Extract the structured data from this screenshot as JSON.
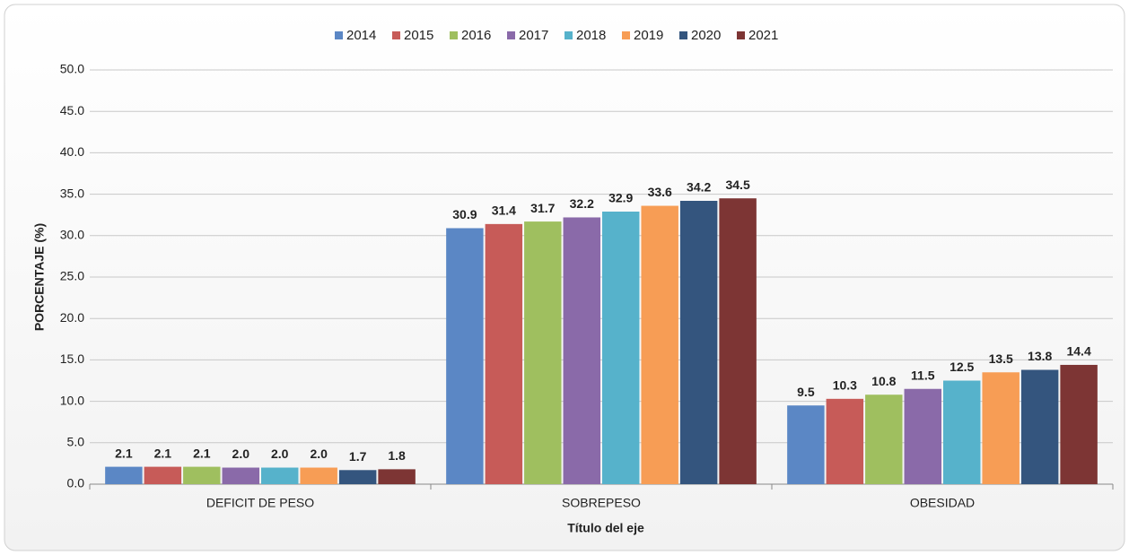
{
  "chart_data": {
    "type": "bar",
    "x_label": "Título del eje",
    "y_label": "PORCENTAJE (%)",
    "categories": [
      "DEFICIT DE PESO",
      "SOBREPESO",
      "OBESIDAD"
    ],
    "series": [
      {
        "name": "2014",
        "color": "#5b87c5",
        "values": [
          2.1,
          30.9,
          9.5
        ],
        "value_labels": [
          "2.1",
          "30.9",
          "9.5"
        ]
      },
      {
        "name": "2015",
        "color": "#c75b58",
        "values": [
          2.1,
          31.4,
          10.3
        ],
        "value_labels": [
          "2.1",
          "31.4",
          "10.3"
        ]
      },
      {
        "name": "2016",
        "color": "#9fbf5f",
        "values": [
          2.1,
          31.7,
          10.8
        ],
        "value_labels": [
          "2.1",
          "31.7",
          "10.8"
        ]
      },
      {
        "name": "2017",
        "color": "#8a6aa9",
        "values": [
          2.0,
          32.2,
          11.5
        ],
        "value_labels": [
          "2.0",
          "32.2",
          "11.5"
        ]
      },
      {
        "name": "2018",
        "color": "#56b2cb",
        "values": [
          2.0,
          32.9,
          12.5
        ],
        "value_labels": [
          "2.0",
          "32.9",
          "12.5"
        ]
      },
      {
        "name": "2019",
        "color": "#f79d55",
        "values": [
          2.0,
          33.6,
          13.5
        ],
        "value_labels": [
          "2.0",
          "33.6",
          "13.5"
        ]
      },
      {
        "name": "2020",
        "color": "#34557e",
        "values": [
          1.7,
          34.2,
          13.8
        ],
        "value_labels": [
          "1.7",
          "34.2",
          "13.8"
        ]
      },
      {
        "name": "2021",
        "color": "#7d3534",
        "values": [
          1.8,
          34.5,
          14.4
        ],
        "value_labels": [
          "1.8",
          "34.5",
          "14.4"
        ]
      }
    ],
    "ylim": [
      0,
      50
    ],
    "yticks": [
      {
        "value": 0,
        "label": "0.0"
      },
      {
        "value": 5,
        "label": "5.0"
      },
      {
        "value": 10,
        "label": "10.0"
      },
      {
        "value": 15,
        "label": "15.0"
      },
      {
        "value": 20,
        "label": "20.0"
      },
      {
        "value": 25,
        "label": "25.0"
      },
      {
        "value": 30,
        "label": "30.0"
      },
      {
        "value": 35,
        "label": "35.0"
      },
      {
        "value": 40,
        "label": "40.0"
      },
      {
        "value": 45,
        "label": "45.0"
      },
      {
        "value": 50,
        "label": "50.0"
      }
    ],
    "grid": true,
    "legend": "top"
  }
}
